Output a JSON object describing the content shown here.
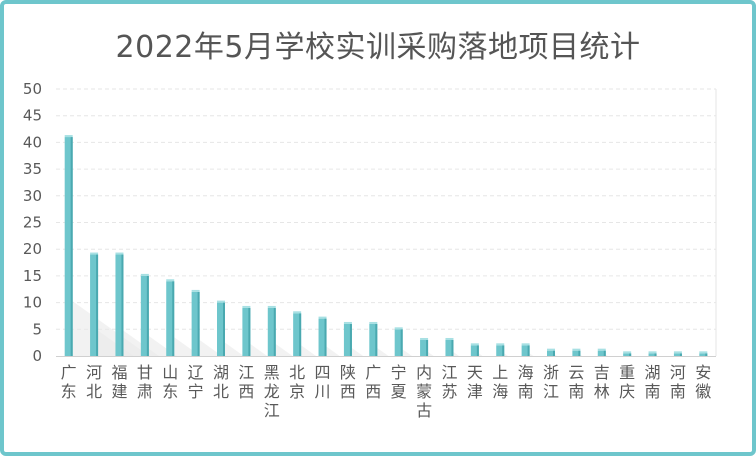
{
  "chart_data": {
    "type": "bar",
    "title": "2022年5月学校实训采购落地项目统计",
    "xlabel": "",
    "ylabel": "",
    "ylim": [
      0,
      50
    ],
    "yticks": [
      0,
      5,
      10,
      15,
      20,
      25,
      30,
      35,
      40,
      45,
      50
    ],
    "grid": true,
    "legend": "none",
    "categories": [
      "广东",
      "河北",
      "福建",
      "甘肃",
      "山东",
      "辽宁",
      "湖北",
      "江西",
      "黑龙江",
      "北京",
      "四川",
      "陕西",
      "广西",
      "宁夏",
      "内蒙古",
      "江苏",
      "天津",
      "上海",
      "海南",
      "浙江",
      "云南",
      "吉林",
      "重庆",
      "湖南",
      "河南",
      "安徽"
    ],
    "values": [
      41,
      19,
      19,
      15,
      14,
      12,
      10,
      9,
      9,
      8,
      7,
      6,
      6,
      5,
      3,
      3,
      2,
      2,
      2,
      1,
      1,
      1,
      0.5,
      0.5,
      0.5,
      0.5
    ],
    "colors": {
      "bar": "#6ec6cc",
      "bar_dark": "#4aa9b0",
      "bar_top": "#a7e0e3",
      "grid": "#e6e6e6",
      "border": "#6ec6cc"
    }
  }
}
